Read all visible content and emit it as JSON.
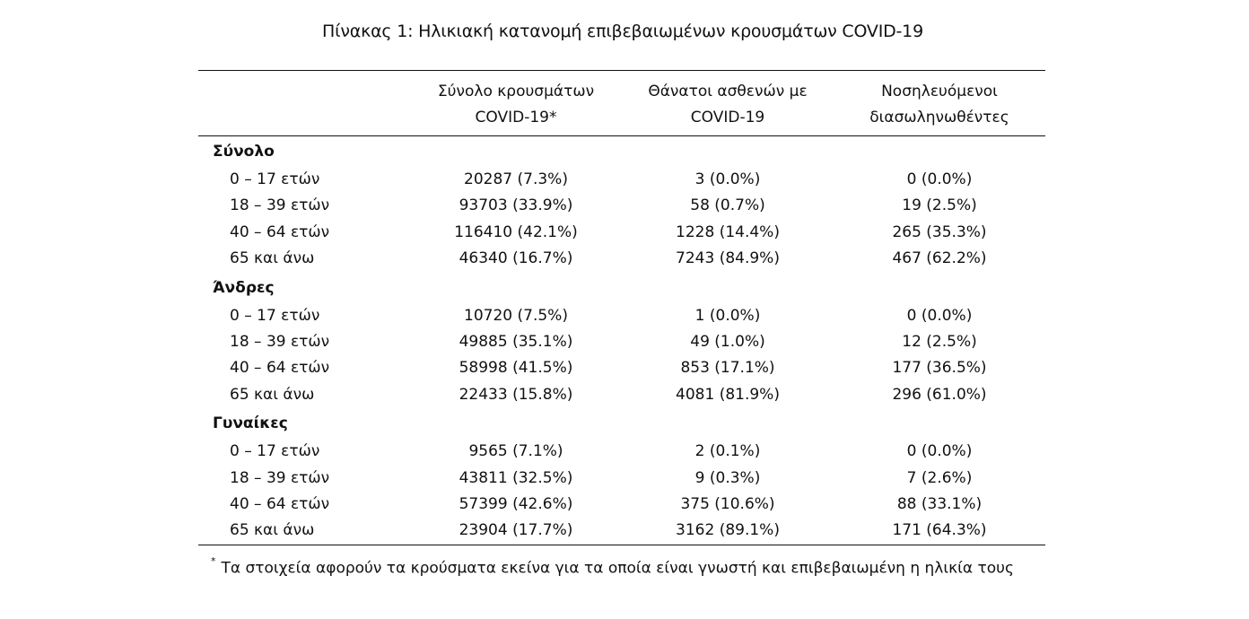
{
  "caption": "Πίνακας 1: Ηλικιακή κατανομή επιβεβαιωμένων κρουσμάτων COVID-19",
  "table": {
    "headers": [
      "",
      [
        "Σύνολο κρουσμάτων",
        "COVID-19*"
      ],
      [
        "Θάνατοι ασθενών με",
        "COVID-19"
      ],
      [
        "Νοσηλευόμενοι",
        "διασωληνωθέντες"
      ]
    ],
    "groups": [
      {
        "title": "Σύνολο",
        "rows": [
          {
            "age": "0 – 17 ετών",
            "cases": "20287 (7.3%)",
            "deaths": "3 (0.0%)",
            "intubated": "0 (0.0%)"
          },
          {
            "age": "18 – 39 ετών",
            "cases": "93703 (33.9%)",
            "deaths": "58 (0.7%)",
            "intubated": "19 (2.5%)"
          },
          {
            "age": "40 – 64 ετών",
            "cases": "116410 (42.1%)",
            "deaths": "1228 (14.4%)",
            "intubated": "265 (35.3%)"
          },
          {
            "age": "65 και άνω",
            "cases": "46340 (16.7%)",
            "deaths": "7243 (84.9%)",
            "intubated": "467 (62.2%)"
          }
        ]
      },
      {
        "title": "Άνδρες",
        "rows": [
          {
            "age": "0 – 17 ετών",
            "cases": "10720 (7.5%)",
            "deaths": "1 (0.0%)",
            "intubated": "0 (0.0%)"
          },
          {
            "age": "18 – 39 ετών",
            "cases": "49885 (35.1%)",
            "deaths": "49 (1.0%)",
            "intubated": "12 (2.5%)"
          },
          {
            "age": "40 – 64 ετών",
            "cases": "58998 (41.5%)",
            "deaths": "853 (17.1%)",
            "intubated": "177 (36.5%)"
          },
          {
            "age": "65 και άνω",
            "cases": "22433 (15.8%)",
            "deaths": "4081 (81.9%)",
            "intubated": "296 (61.0%)"
          }
        ]
      },
      {
        "title": "Γυναίκες",
        "rows": [
          {
            "age": "0 – 17 ετών",
            "cases": "9565 (7.1%)",
            "deaths": "2 (0.1%)",
            "intubated": "0 (0.0%)"
          },
          {
            "age": "18 – 39 ετών",
            "cases": "43811 (32.5%)",
            "deaths": "9 (0.3%)",
            "intubated": "7 (2.6%)"
          },
          {
            "age": "40 – 64 ετών",
            "cases": "57399 (42.6%)",
            "deaths": "375 (10.6%)",
            "intubated": "88 (33.1%)"
          },
          {
            "age": "65 και άνω",
            "cases": "23904 (17.7%)",
            "deaths": "3162 (89.1%)",
            "intubated": "171 (64.3%)"
          }
        ]
      }
    ]
  },
  "footnote": {
    "marker": "*",
    "text": "Τα στοιχεία αφορούν τα κρούσματα εκείνα για τα οποία είναι γνωστή και επιβεβαιωμένη η ηλικία τους"
  }
}
